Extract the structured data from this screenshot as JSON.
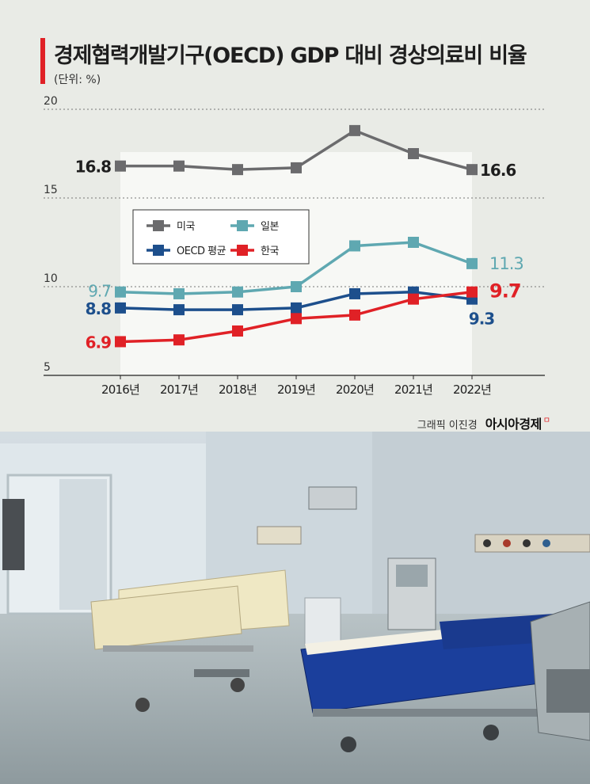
{
  "title": "경제협력개발기구(OECD) GDP 대비 경상의료비 비율",
  "unit_label": "(단위: %)",
  "credit": {
    "text": "그래픽 이진경",
    "brand": "아시아경제"
  },
  "colors": {
    "accent": "#e02126",
    "usa": "#6b6b6d",
    "japan": "#5fa8b1",
    "oecd": "#1d4f8c",
    "korea": "#e02126"
  },
  "chart_data": {
    "type": "line",
    "x": [
      "2016년",
      "2017년",
      "2018년",
      "2019년",
      "2020년",
      "2021년",
      "2022년"
    ],
    "ylim": [
      5,
      20
    ],
    "yticks": [
      "5",
      "10",
      "15",
      "20"
    ],
    "title": "경제협력개발기구(OECD) GDP 대비 경상의료비 비율",
    "ylabel": "(단위: %)",
    "legend_position": "upper-left",
    "series": [
      {
        "name": "미국",
        "color": "#6b6b6d",
        "values": [
          16.8,
          16.8,
          16.6,
          16.7,
          18.8,
          17.5,
          16.6
        ],
        "first_label": "16.8",
        "last_label": "16.6"
      },
      {
        "name": "일본",
        "color": "#5fa8b1",
        "values": [
          9.7,
          9.6,
          9.7,
          10.0,
          12.3,
          12.5,
          11.3
        ],
        "first_label": "9.7",
        "last_label": "11.3"
      },
      {
        "name": "OECD 평균",
        "color": "#1d4f8c",
        "values": [
          8.8,
          8.7,
          8.7,
          8.8,
          9.6,
          9.7,
          9.3
        ],
        "first_label": "8.8",
        "last_label": "9.3"
      },
      {
        "name": "한국",
        "color": "#e02126",
        "values": [
          6.9,
          7.0,
          7.5,
          8.2,
          8.4,
          9.3,
          9.7
        ],
        "first_label": "6.9",
        "last_label": "9.7"
      }
    ]
  }
}
